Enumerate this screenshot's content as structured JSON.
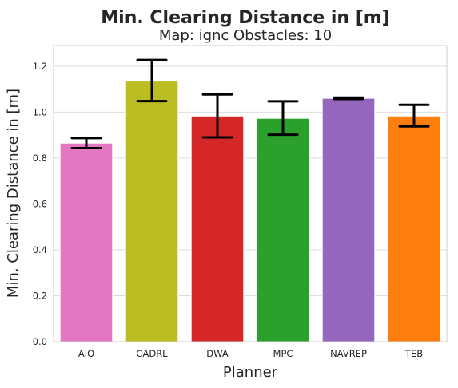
{
  "figure": {
    "suptitle": "Min. Clearing Distance in [m]",
    "subtitle": "Map: ignc Obstacles: 10"
  },
  "chart_data": {
    "type": "bar",
    "title": "Map: ignc Obstacles: 10",
    "xlabel": "Planner",
    "ylabel": "Min. Clearing Distance in [m]",
    "categories": [
      "AIO",
      "CADRL",
      "DWA",
      "MPC",
      "NAVREP",
      "TEB"
    ],
    "values": [
      0.865,
      1.135,
      0.983,
      0.973,
      1.06,
      0.983
    ],
    "error_low": [
      0.843,
      1.048,
      0.89,
      0.902,
      1.057,
      0.938
    ],
    "error_high": [
      0.887,
      1.227,
      1.077,
      1.047,
      1.063,
      1.032
    ],
    "colors": [
      "#e377c2",
      "#bcbd22",
      "#d62728",
      "#2ca02c",
      "#9467bd",
      "#ff7f0e"
    ],
    "ylim": [
      0,
      1.29
    ],
    "yticks": [
      0.0,
      0.2,
      0.4,
      0.6,
      0.8,
      1.0,
      1.2
    ],
    "grid": true
  }
}
